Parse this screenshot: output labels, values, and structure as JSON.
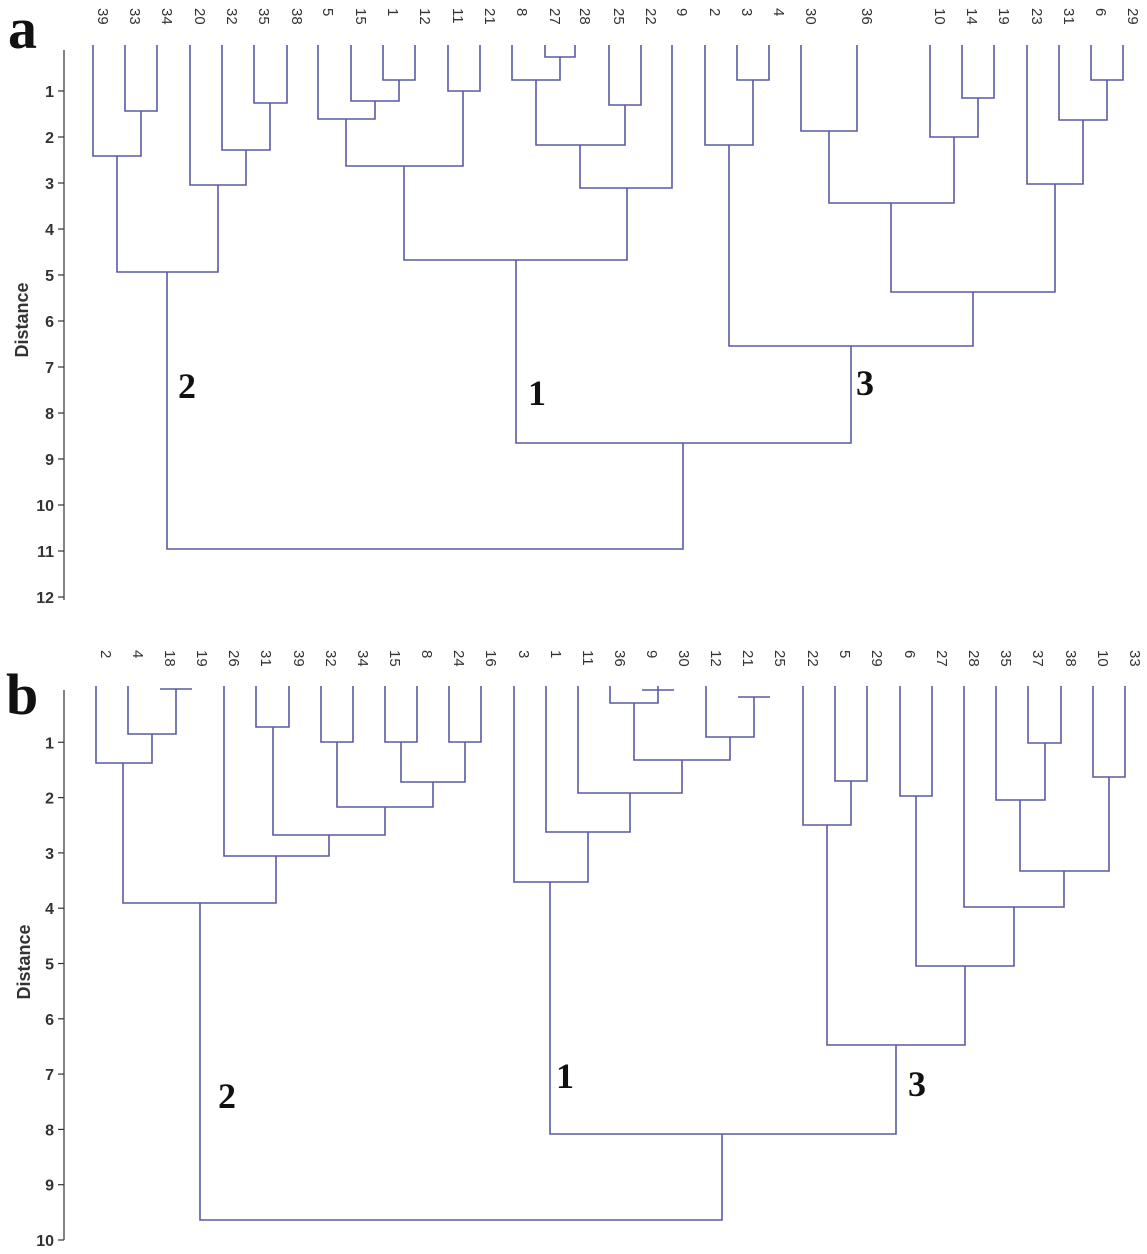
{
  "axis_title": "Distance",
  "colors": {
    "link_blue": "#5a5aa6",
    "link_dark": "#3a3a3a",
    "text": "#333333"
  },
  "panels": [
    {
      "letter": "a",
      "ticks": [
        "1",
        "2",
        "3",
        "4",
        "5",
        "6",
        "7",
        "8",
        "9",
        "10",
        "11",
        "12"
      ],
      "leaves": [
        "39",
        "33",
        "34",
        "20",
        "32",
        "35",
        "38",
        "5",
        "15",
        "1",
        "12",
        "11",
        "21",
        "8",
        "27",
        "28",
        "25",
        "22",
        "9",
        "2",
        "3",
        "4",
        "30",
        "36",
        "10",
        "14",
        "19",
        "23",
        "31",
        "6",
        "29"
      ],
      "cluster_labels": [
        "2",
        "1",
        "3"
      ],
      "merges": [
        {
          "a": "39",
          "b": "33|34",
          "h": 2.4
        },
        {
          "a": "33",
          "b": "34",
          "h": 1.4
        },
        {
          "a": "20",
          "b": "32|35|38",
          "h": 3.0
        },
        {
          "a": "32",
          "b": "35|38",
          "h": 2.2
        },
        {
          "a": "35",
          "b": "38",
          "h": 1.2
        },
        {
          "a": "L1",
          "b": "L2",
          "h": 4.9
        },
        {
          "a": "5",
          "b": "15|1|12",
          "h": 1.6
        },
        {
          "a": "15",
          "b": "1|12",
          "h": 1.2
        },
        {
          "a": "1",
          "b": "12",
          "h": 0.7
        },
        {
          "a": "11",
          "b": "21",
          "h": 0.9
        },
        {
          "a": "8",
          "b": "27",
          "h": 0.7
        },
        {
          "a": "27a",
          "b": "27b",
          "h": 0.2
        },
        {
          "a": "25",
          "b": "22",
          "h": 1.2
        },
        {
          "a": "L3",
          "b": "L4",
          "h": 2.1
        },
        {
          "a": "L5",
          "b": "9",
          "h": 3.1
        },
        {
          "a": "L6",
          "b": "L7",
          "h": 2.6
        },
        {
          "a": "L8",
          "b": "L9",
          "h": 4.6
        },
        {
          "a": "3",
          "b": "4",
          "h": 0.7
        },
        {
          "a": "2",
          "b": "3|4",
          "h": 2.1
        },
        {
          "a": "30",
          "b": "36",
          "h": 1.8
        },
        {
          "a": "14",
          "b": "19",
          "h": 1.1
        },
        {
          "a": "10",
          "b": "14|19",
          "h": 1.9
        },
        {
          "a": "L10",
          "b": "L11",
          "h": 3.4
        },
        {
          "a": "6",
          "b": "29",
          "h": 0.7
        },
        {
          "a": "31",
          "b": "6|29",
          "h": 1.6
        },
        {
          "a": "23",
          "b": "31|6|29",
          "h": 3.0
        },
        {
          "a": "L12",
          "b": "L13",
          "h": 5.3
        },
        {
          "a": "L14",
          "b": "L15",
          "h": 6.5
        },
        {
          "a": "C1",
          "b": "C3",
          "h": 8.6
        },
        {
          "a": "C2",
          "b": "C13",
          "h": 10.9
        }
      ]
    },
    {
      "letter": "b",
      "ticks": [
        "1",
        "2",
        "3",
        "4",
        "5",
        "6",
        "7",
        "8",
        "9",
        "10"
      ],
      "leaves": [
        "2",
        "4",
        "18",
        "19",
        "26",
        "31",
        "39",
        "32",
        "34",
        "15",
        "8",
        "24",
        "16",
        "3",
        "1",
        "11",
        "36",
        "9",
        "30",
        "12",
        "21",
        "25",
        "22",
        "5",
        "29",
        "6",
        "27",
        "28",
        "35",
        "37",
        "38",
        "10",
        "33"
      ],
      "cluster_labels": [
        "2",
        "1",
        "3"
      ],
      "merges": []
    }
  ]
}
